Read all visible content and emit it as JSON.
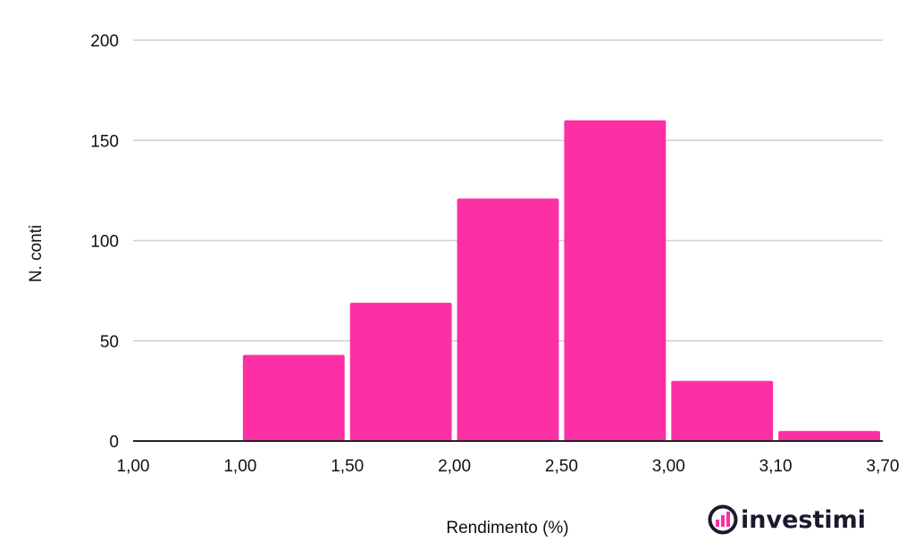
{
  "chart_data": {
    "type": "bar",
    "title": "",
    "xlabel": "Rendimento (%)",
    "ylabel": "N. conti",
    "x_edge_labels": [
      "1,00",
      "1,00",
      "1,50",
      "2,00",
      "2,50",
      "3,00",
      "3,10",
      "3,70"
    ],
    "bins": [
      {
        "from": "1,00",
        "to": "1,00",
        "value": 0
      },
      {
        "from": "1,00",
        "to": "1,50",
        "value": 43
      },
      {
        "from": "1,50",
        "to": "2,00",
        "value": 69
      },
      {
        "from": "2,00",
        "to": "2,50",
        "value": 121
      },
      {
        "from": "2,50",
        "to": "3,00",
        "value": 160
      },
      {
        "from": "3,00",
        "to": "3,10",
        "value": 30
      },
      {
        "from": "3,10",
        "to": "3,70",
        "value": 5
      }
    ],
    "ylim": [
      0,
      200
    ],
    "yticks": [
      0,
      50,
      100,
      150,
      200
    ],
    "grid": true,
    "bar_color": "#fc2fa5",
    "grid_color": "#d0d0d0",
    "axis_color": "#222222"
  },
  "brand": {
    "name": "investimi",
    "icon": "bar-chart-circle-icon"
  }
}
